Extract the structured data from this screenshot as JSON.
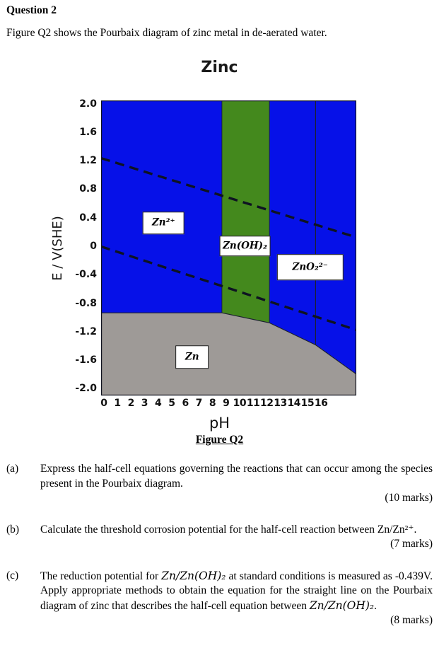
{
  "page": {
    "title": "Question 2",
    "intro": "Figure Q2 shows the Pourbaix diagram of zinc metal in de-aerated water.",
    "figure_caption": "Figure Q2"
  },
  "chart_data": {
    "type": "area",
    "variant": "pourbaix-diagram",
    "title": "Zinc",
    "xlabel": "pH",
    "ylabel": "E / V(SHE)",
    "xlim": [
      -0.2,
      18.6
    ],
    "ylim": [
      -2.09,
      2.05
    ],
    "grid": false,
    "x_ticks": [
      0,
      1,
      2,
      3,
      4,
      5,
      6,
      7,
      8,
      9,
      10,
      11,
      12,
      13,
      14,
      15,
      16
    ],
    "y_tick_values": [
      2.0,
      1.6,
      1.2,
      0.8,
      0.4,
      0,
      -0.4,
      -0.8,
      -1.2,
      -1.6,
      -2.0
    ],
    "y_tick_labels": [
      "2.0",
      "1.6",
      "1.2",
      "0.8",
      "0.4",
      "0",
      "-0.4",
      "-0.8",
      "-1.2",
      "-1.6",
      "-2.0"
    ],
    "colors": {
      "solution": "#0611e8",
      "passive_film": "#44891d",
      "metal": "#9e9a97",
      "boundary": "#1c2130",
      "water_line": "#0e1322",
      "frame": "#10131f",
      "label_box_bg": "#ffffff",
      "label_box_border": "#111111"
    },
    "regions": [
      {
        "species": "Zn2+ (corrosion, aqueous)",
        "label": "Zn²⁺",
        "color_key": "solution"
      },
      {
        "species": "Zn(OH)2 (passive film)",
        "label": "Zn(OH)₂",
        "color_key": "passive_film"
      },
      {
        "species": "ZnO2 2- (corrosion, aqueous)",
        "label": "ZnO₂²⁻",
        "color_key": "solution"
      },
      {
        "species": "Zn (immune metal)",
        "label": "Zn",
        "color_key": "metal"
      }
    ],
    "passive_band": {
      "ph_min": 8.7,
      "ph_max": 12.2
    },
    "metal_boundary": [
      [
        -0.2,
        -0.93
      ],
      [
        8.7,
        -0.93
      ],
      [
        12.2,
        -1.07
      ],
      [
        15.6,
        -1.38
      ],
      [
        18.6,
        -1.79
      ]
    ],
    "vertical_boundary_ph": 15.6,
    "water_lines": [
      {
        "name": "oxygen-reduction-dashed-line",
        "points": [
          [
            -0.2,
            1.24
          ],
          [
            18.6,
            0.13
          ]
        ]
      },
      {
        "name": "hydrogen-evolution-dashed-line",
        "points": [
          [
            -0.2,
            0.0
          ],
          [
            18.6,
            -1.17
          ]
        ]
      }
    ],
    "region_labels": [
      {
        "text": "Zn²⁺",
        "ph": 4.4,
        "E": 0.33,
        "class": "rl-zn2",
        "name": "region-label-zn2plus"
      },
      {
        "text": "Zn(OH)₂",
        "ph": 10.4,
        "E": 0.01,
        "class": "rl-znoh2",
        "name": "region-label-znoh2"
      },
      {
        "text": "ZnO₂²⁻",
        "ph": 15.2,
        "E": -0.29,
        "class": "rl-zno2",
        "name": "region-label-zno2"
      },
      {
        "text": "Zn",
        "ph": 6.5,
        "E": -1.55,
        "class": "rl-zn",
        "name": "region-label-zn-metal"
      }
    ]
  },
  "questions": [
    {
      "letter": "(a)",
      "segments": [
        {
          "t": "Express the half-cell equations governing the reactions that can occur among the species present in the Pourbaix diagram.",
          "math": false
        }
      ],
      "marks": "(10 marks)"
    },
    {
      "letter": "(b)",
      "segments": [
        {
          "t": "Calculate the threshold corrosion potential for the half-cell reaction between Zn/Zn²⁺.",
          "math": false
        }
      ],
      "marks": "(7 marks)"
    },
    {
      "letter": "(c)",
      "segments": [
        {
          "t": "The reduction potential for ",
          "math": false
        },
        {
          "t": "Zn/Zn(OH)₂",
          "math": true
        },
        {
          "t": " at standard conditions is measured as -0.439V. Apply appropriate methods to obtain the equation for the straight line on the Pourbaix diagram of zinc that describes the half-cell equation between ",
          "math": false
        },
        {
          "t": "Zn/Zn(OH)₂",
          "math": true
        },
        {
          "t": ".",
          "math": false
        }
      ],
      "marks": "(8 marks)"
    }
  ]
}
